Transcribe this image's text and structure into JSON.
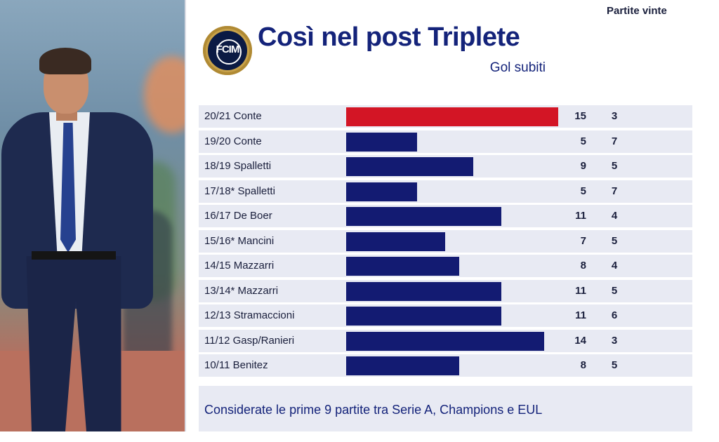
{
  "header": {
    "title": "Così nel post Triplete",
    "col_goals": "Gol subiti",
    "col_wins": "Partite vinte",
    "logo_text": "FCIM"
  },
  "footer": {
    "note": "Considerate le prime 9 partite tra Serie A, Champions e EUL"
  },
  "colors": {
    "bar": "#131b72",
    "highlight": "#d31525",
    "row_bg": "#e8eaf3",
    "title": "#14237a"
  },
  "chart_data": {
    "type": "bar",
    "orientation": "horizontal",
    "categories": [
      "20/21 Conte",
      "19/20 Conte",
      "18/19 Spalletti",
      "17/18* Spalletti",
      "16/17 De Boer",
      "15/16* Mancini",
      "14/15 Mazzarri",
      "13/14* Mazzarri",
      "12/13 Stramaccioni",
      "11/12 Gasp/Ranieri",
      "10/11 Benitez"
    ],
    "series": [
      {
        "name": "Gol subiti",
        "values": [
          15,
          5,
          9,
          5,
          11,
          7,
          8,
          11,
          11,
          14,
          8
        ]
      },
      {
        "name": "Partite vinte",
        "values": [
          3,
          7,
          5,
          7,
          4,
          5,
          4,
          5,
          6,
          3,
          5
        ]
      }
    ],
    "highlight_index": 0,
    "xlim": [
      0,
      15
    ]
  }
}
